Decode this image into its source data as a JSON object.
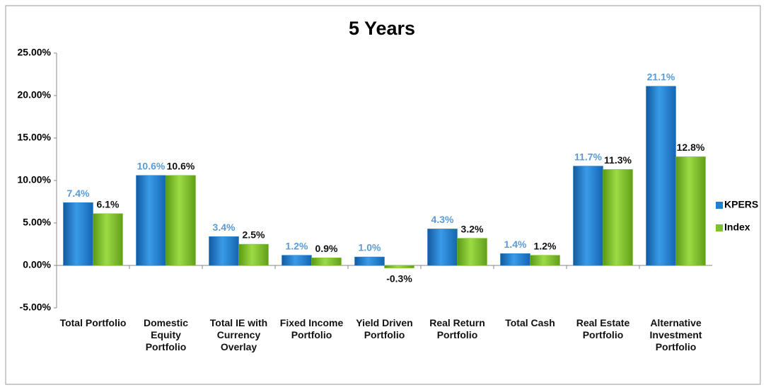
{
  "chart_data": {
    "type": "bar",
    "title": "5 Years",
    "categories": [
      "Total Portfolio",
      "Domestic Equity Portfolio",
      "Total IE with Currency Overlay",
      "Fixed Income Portfolio",
      "Yield Driven Portfolio",
      "Real Return Portfolio",
      "Total Cash",
      "Real Estate Portfolio",
      "Alternative Investment Portfolio"
    ],
    "series": [
      {
        "name": "KPERS",
        "color": "#1f7fd0",
        "values": [
          7.4,
          10.6,
          3.4,
          1.2,
          1.0,
          4.3,
          1.4,
          11.7,
          21.1
        ],
        "value_labels": [
          "7.4%",
          "10.6%",
          "3.4%",
          "1.2%",
          "1.0%",
          "4.3%",
          "1.4%",
          "11.7%",
          "21.1%"
        ]
      },
      {
        "name": "Index",
        "color": "#7dc22a",
        "values": [
          6.1,
          10.6,
          2.5,
          0.9,
          -0.3,
          3.2,
          1.2,
          11.3,
          12.8
        ],
        "value_labels": [
          "6.1%",
          "10.6%",
          "2.5%",
          "0.9%",
          "-0.3%",
          "3.2%",
          "1.2%",
          "11.3%",
          "12.8%"
        ]
      }
    ],
    "ylim": [
      -5,
      25
    ],
    "yticks": [
      {
        "value": -5,
        "label": "-5.00%"
      },
      {
        "value": 0,
        "label": "0.00%"
      },
      {
        "value": 5,
        "label": "5.00%"
      },
      {
        "value": 10,
        "label": "10.00%"
      },
      {
        "value": 15,
        "label": "15.00%"
      },
      {
        "value": 20,
        "label": "20.00%"
      },
      {
        "value": 25,
        "label": "25.00%"
      }
    ],
    "grid": false,
    "legend": "right"
  }
}
